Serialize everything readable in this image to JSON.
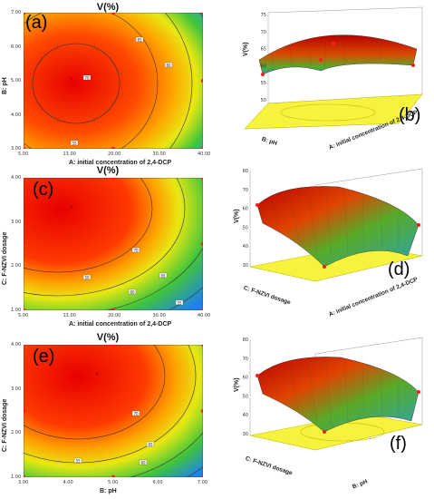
{
  "panels": [
    {
      "letter": "(a)",
      "title": "V(%)",
      "xlabel": "A: initial concentration of 2,4-DCP",
      "ylabel": "B: pH"
    },
    {
      "letter": "(b)",
      "zlabel": "V(%)",
      "xlabel": "A: initial concentration of 2,4-DCP",
      "ylabel": "B: pH"
    },
    {
      "letter": "(c)",
      "title": "V(%)",
      "xlabel": "A: initial concentration of 2,4-DCP",
      "ylabel": "C: F-NZVI dosage"
    },
    {
      "letter": "(d)",
      "zlabel": "V(%)",
      "xlabel": "A: initial concentration of 2,4-DCP",
      "ylabel": "C: F-NZVI dosage"
    },
    {
      "letter": "(e)",
      "title": "V(%)",
      "xlabel": "B: pH",
      "ylabel": "C: F-NZVI dosage"
    },
    {
      "letter": "(f)",
      "zlabel": "V(%)",
      "xlabel": "B: pH",
      "ylabel": "C: F-NZVI dosage"
    }
  ],
  "chart_data": [
    {
      "type": "heatmap",
      "panel": "(a)",
      "title": "V(%)",
      "xlabel": "A: initial concentration of 2,4-DCP",
      "ylabel": "B: pH",
      "xlim": [
        5,
        40
      ],
      "ylim": [
        3,
        7
      ],
      "xticks": [
        "5.00",
        "13.00",
        "20.00",
        "30.00",
        "40.00"
      ],
      "yticks": [
        "3.00",
        "4.00",
        "5.00",
        "6.00",
        "7.00"
      ],
      "optimum": [
        14,
        5.0
      ],
      "contour_levels": [
        "70",
        "65",
        "60",
        "55"
      ]
    },
    {
      "type": "surface",
      "panel": "(b)",
      "zlabel": "V(%)",
      "zlim": [
        50,
        75
      ],
      "zticks": [
        "50",
        "55",
        "60",
        "65",
        "70",
        "75"
      ]
    },
    {
      "type": "heatmap",
      "panel": "(c)",
      "title": "V(%)",
      "xlabel": "A: initial concentration of 2,4-DCP",
      "ylabel": "C: F-NZVI dosage",
      "xlim": [
        5,
        40
      ],
      "ylim": [
        1,
        4
      ],
      "xticks": [
        "5.00",
        "13.00",
        "20.00",
        "30.00",
        "40.00"
      ],
      "yticks": [
        "1.00",
        "2.00",
        "3.00",
        "4.00"
      ],
      "optimum": [
        14,
        3.3
      ],
      "contour_levels": [
        "70",
        "65",
        "60",
        "55",
        "50"
      ]
    },
    {
      "type": "surface",
      "panel": "(d)",
      "zlabel": "V(%)",
      "zlim": [
        30,
        80
      ],
      "zticks": [
        "30",
        "40",
        "50",
        "60",
        "70",
        "80"
      ]
    },
    {
      "type": "heatmap",
      "panel": "(e)",
      "title": "V(%)",
      "xlabel": "B: pH",
      "ylabel": "C: F-NZVI dosage",
      "xlim": [
        3,
        7
      ],
      "ylim": [
        1,
        4
      ],
      "xticks": [
        "3.00",
        "4.00",
        "5.00",
        "6.00",
        "7.00"
      ],
      "yticks": [
        "1.00",
        "2.00",
        "3.00",
        "4.00"
      ],
      "optimum": [
        4.6,
        3.3
      ],
      "contour_levels": [
        "70",
        "65",
        "60",
        "55"
      ]
    },
    {
      "type": "surface",
      "panel": "(f)",
      "zlabel": "V(%)",
      "zlim": [
        30,
        80
      ],
      "zticks": [
        "30",
        "40",
        "50",
        "60",
        "70",
        "80"
      ]
    }
  ],
  "colors": {
    "hot": "#e60000",
    "warm": "#ff8c00",
    "mid": "#f2e60a",
    "cool": "#38c23a",
    "cold": "#1e90ff",
    "marker": "#ff1a1a"
  }
}
